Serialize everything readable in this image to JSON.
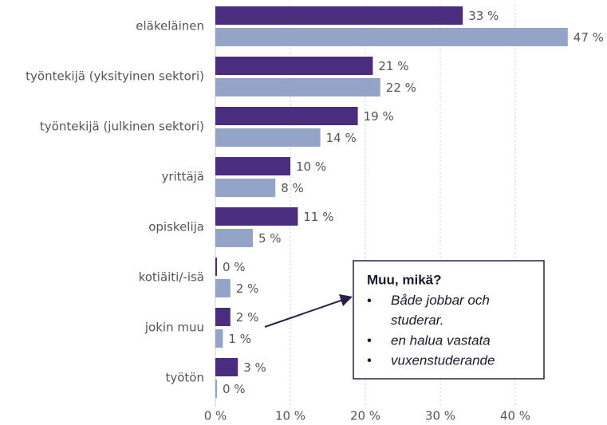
{
  "chart_data": {
    "type": "hbar",
    "categories": [
      "eläkeläinen",
      "työntekijä (yksityinen sektori)",
      "työntekijä (julkinen sektori)",
      "yrittäjä",
      "opiskelija",
      "kotiäiti/-isä",
      "jokin muu",
      "työtön"
    ],
    "series": [
      {
        "color": "#4b2d7f",
        "values": [
          33,
          21,
          19,
          10,
          11,
          0,
          2,
          3
        ],
        "value_labels": [
          "33 %",
          "21 %",
          "19 %",
          "10 %",
          "11 %",
          "0 %",
          "2 %",
          "3 %"
        ]
      },
      {
        "color": "#94a3c8",
        "values": [
          47,
          22,
          14,
          8,
          5,
          2,
          1,
          0
        ],
        "value_labels": [
          "47 %",
          "22 %",
          "14 %",
          "8 %",
          "5 %",
          "2 %",
          "1 %",
          "0 %"
        ]
      }
    ],
    "xlim": [
      0,
      50
    ],
    "xticks": [
      {
        "value": 0,
        "label": "0 %"
      },
      {
        "value": 10,
        "label": "10 %"
      },
      {
        "value": 20,
        "label": "20 %"
      },
      {
        "value": 30,
        "label": "30 %"
      },
      {
        "value": 40,
        "label": "40 %"
      }
    ],
    "grid": true,
    "annotation": {
      "title": "Muu, mikä?",
      "items": [
        "Både jobbar och studerar.",
        "en halua vastata",
        "vuxenstuderande"
      ]
    }
  }
}
